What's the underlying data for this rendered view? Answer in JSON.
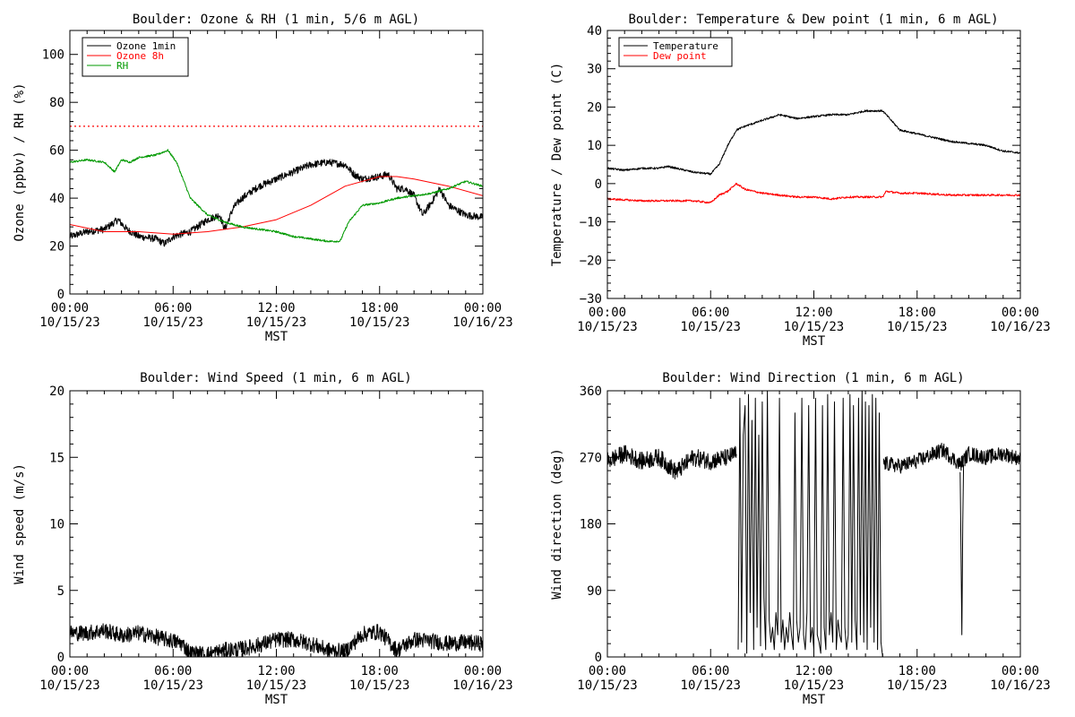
{
  "chart_data": [
    {
      "id": "p1",
      "type": "line",
      "title": "Boulder: Ozone & RH (1 min, 5/6 m AGL)",
      "ylabel": "Ozone (ppbv) / RH (%)",
      "xlabel": "MST",
      "xlim": [
        0,
        24
      ],
      "ylim": [
        0,
        110
      ],
      "xticks": [
        0,
        6,
        12,
        18,
        24
      ],
      "xticklabels": [
        [
          "00:00",
          "10/15/23"
        ],
        [
          "06:00",
          "10/15/23"
        ],
        [
          "12:00",
          "10/15/23"
        ],
        [
          "18:00",
          "10/15/23"
        ],
        [
          "00:00",
          "10/16/23"
        ]
      ],
      "yticks": [
        0,
        20,
        40,
        60,
        80,
        100
      ],
      "yticklabels": [
        "0",
        "20",
        "40",
        "60",
        "80",
        "100"
      ],
      "legend": "top-left",
      "grid": false,
      "hline": {
        "y": 70,
        "color": "#ff0000",
        "style": "dotted"
      },
      "series": [
        {
          "name": "Ozone 1min",
          "color": "#000000",
          "noise": 1.5,
          "x": [
            0,
            1,
            2,
            2.8,
            3.3,
            4,
            5,
            5.5,
            6,
            7,
            8,
            8.7,
            9,
            9.5,
            10,
            11,
            12,
            13,
            14,
            15,
            16,
            16.5,
            17,
            18,
            18.5,
            19,
            19.5,
            20,
            20.5,
            21,
            21.5,
            22,
            23,
            24
          ],
          "y": [
            24,
            26,
            27,
            31,
            27,
            24,
            23,
            21,
            24,
            26,
            31,
            33,
            27,
            36,
            40,
            45,
            48,
            51,
            54,
            55,
            54,
            50,
            48,
            49,
            50,
            44,
            44,
            41,
            33,
            38,
            44,
            37,
            33,
            32
          ]
        },
        {
          "name": "Ozone 8h",
          "color": "#ff0000",
          "noise": 0,
          "x": [
            0,
            2,
            4,
            6,
            8,
            10,
            12,
            14,
            16,
            18,
            19,
            20,
            22,
            24
          ],
          "y": [
            29,
            26,
            26,
            25,
            26,
            28,
            31,
            37,
            45,
            49,
            49,
            48,
            45,
            41
          ]
        },
        {
          "name": "RH",
          "color": "#009900",
          "noise": 0.4,
          "x": [
            0,
            1,
            2,
            2.6,
            3,
            3.5,
            4,
            5,
            5.7,
            6.2,
            7,
            8,
            9,
            10,
            11,
            12,
            13,
            14,
            15,
            15.7,
            16.2,
            17,
            18,
            19,
            20,
            21,
            22,
            23,
            24
          ],
          "y": [
            55,
            56,
            55,
            51,
            56,
            55,
            57,
            58,
            60,
            55,
            40,
            33,
            30,
            28,
            27,
            26,
            24,
            23,
            22,
            22,
            30,
            37,
            38,
            40,
            41,
            42,
            44,
            47,
            45
          ]
        }
      ]
    },
    {
      "id": "p2",
      "type": "line",
      "title": "Boulder: Temperature & Dew point (1 min, 6 m AGL)",
      "ylabel": "Temperature / Dew point (C)",
      "xlabel": "MST",
      "xlim": [
        0,
        24
      ],
      "ylim": [
        -30,
        40
      ],
      "xticks": [
        0,
        6,
        12,
        18,
        24
      ],
      "xticklabels": [
        [
          "00:00",
          "10/15/23"
        ],
        [
          "06:00",
          "10/15/23"
        ],
        [
          "12:00",
          "10/15/23"
        ],
        [
          "18:00",
          "10/15/23"
        ],
        [
          "00:00",
          "10/16/23"
        ]
      ],
      "yticks": [
        -30,
        -20,
        -10,
        0,
        10,
        20,
        30,
        40
      ],
      "yticklabels": [
        "−30",
        "−20",
        "−10",
        "0",
        "10",
        "20",
        "30",
        "40"
      ],
      "legend": "top-left",
      "grid": false,
      "series": [
        {
          "name": "Temperature",
          "color": "#000000",
          "noise": 0.25,
          "x": [
            0,
            1,
            2,
            3,
            3.5,
            4,
            5,
            6,
            6.5,
            7,
            7.5,
            8,
            9,
            10,
            11,
            12,
            13,
            14,
            15,
            16,
            16.4,
            17,
            18,
            19,
            20,
            21,
            22,
            23,
            24
          ],
          "y": [
            4,
            3.5,
            4,
            4,
            4.5,
            4,
            3,
            2.5,
            5,
            10,
            14,
            15,
            16.5,
            18,
            17,
            17.5,
            18,
            18,
            19,
            19,
            17,
            14,
            13,
            12,
            11,
            10.5,
            10,
            8.5,
            8
          ]
        },
        {
          "name": "Dew point",
          "color": "#ff0000",
          "noise": 0.25,
          "x": [
            0,
            2,
            4,
            5,
            6,
            6.5,
            7,
            7.5,
            8,
            9,
            10,
            11,
            12,
            13,
            14,
            15,
            16,
            16.2,
            17,
            18,
            20,
            22,
            24
          ],
          "y": [
            -4,
            -4.5,
            -4.5,
            -4.5,
            -5,
            -3,
            -2,
            0,
            -1.5,
            -2.5,
            -3,
            -3.5,
            -3.5,
            -4,
            -3.5,
            -3.5,
            -3.5,
            -2,
            -2.5,
            -2.5,
            -3,
            -3,
            -3
          ]
        }
      ]
    },
    {
      "id": "p3",
      "type": "line",
      "title": "Boulder: Wind Speed (1 min, 6 m AGL)",
      "ylabel": "Wind speed (m/s)",
      "xlabel": "MST",
      "xlim": [
        0,
        24
      ],
      "ylim": [
        0,
        20
      ],
      "xticks": [
        0,
        6,
        12,
        18,
        24
      ],
      "xticklabels": [
        [
          "00:00",
          "10/15/23"
        ],
        [
          "06:00",
          "10/15/23"
        ],
        [
          "12:00",
          "10/15/23"
        ],
        [
          "18:00",
          "10/15/23"
        ],
        [
          "00:00",
          "10/16/23"
        ]
      ],
      "yticks": [
        0,
        5,
        10,
        15,
        20
      ],
      "yticklabels": [
        "0",
        "5",
        "10",
        "15",
        "20"
      ],
      "grid": false,
      "series": [
        {
          "name": "",
          "color": "#000000",
          "noise": 0.6,
          "x": [
            0,
            1,
            2,
            3,
            4,
            5,
            6,
            6.5,
            7,
            8,
            9,
            10,
            11,
            12,
            13,
            14,
            15,
            16,
            17,
            18,
            19,
            20,
            21,
            22,
            23,
            24
          ],
          "y": [
            1.8,
            1.8,
            2.0,
            1.6,
            1.8,
            1.5,
            1.2,
            1.0,
            0.3,
            0.2,
            0.5,
            0.6,
            0.9,
            1.3,
            1.3,
            1.0,
            0.5,
            0.4,
            1.7,
            1.9,
            0.5,
            1.3,
            1.2,
            1.0,
            1.1,
            1.0
          ]
        }
      ]
    },
    {
      "id": "p4",
      "type": "line",
      "title": "Boulder: Wind Direction (1 min, 6 m AGL)",
      "ylabel": "Wind direction (deg)",
      "xlabel": "MST",
      "xlim": [
        0,
        24
      ],
      "ylim": [
        0,
        360
      ],
      "xticks": [
        0,
        6,
        12,
        18,
        24
      ],
      "xticklabels": [
        [
          "00:00",
          "10/15/23"
        ],
        [
          "06:00",
          "10/15/23"
        ],
        [
          "12:00",
          "10/15/23"
        ],
        [
          "18:00",
          "10/15/23"
        ],
        [
          "00:00",
          "10/16/23"
        ]
      ],
      "yticks": [
        0,
        90,
        180,
        270,
        360
      ],
      "yticklabels": [
        "0",
        "90",
        "180",
        "270",
        "360"
      ],
      "grid": false,
      "series": [
        {
          "name": "",
          "color": "#000000",
          "noise": 12,
          "x": [
            0,
            1,
            2,
            3,
            4,
            5,
            6,
            7,
            7.5
          ],
          "y": [
            265,
            275,
            265,
            270,
            250,
            270,
            265,
            270,
            275
          ]
        },
        {
          "name": "",
          "color": "#000000",
          "noise": 0,
          "x": [
            7.6,
            7.7,
            7.8,
            7.9,
            8.0,
            8.1,
            8.2,
            8.3,
            8.4,
            8.5,
            8.6,
            8.7,
            8.8,
            8.9,
            9.0,
            9.1,
            9.2,
            9.3,
            9.4,
            9.5,
            9.6,
            9.7,
            9.8,
            9.9,
            10.0,
            10.1,
            10.2,
            10.3,
            10.4,
            10.5,
            10.6,
            10.7,
            10.8,
            10.9,
            11.0,
            11.1,
            11.2,
            11.3,
            11.4,
            11.5,
            11.6,
            11.7,
            11.8,
            11.9,
            12.0,
            12.1,
            12.2,
            12.3,
            12.4,
            12.5,
            12.6,
            12.7,
            12.8,
            12.9,
            13.0,
            13.1,
            13.2,
            13.3,
            13.4,
            13.5,
            13.6,
            13.7,
            13.8,
            13.9,
            14.0,
            14.1,
            14.2,
            14.3,
            14.4,
            14.5,
            14.6,
            14.7,
            14.8,
            14.9,
            15.0,
            15.1,
            15.2,
            15.3,
            15.4,
            15.5,
            15.6,
            15.7,
            15.8,
            15.9,
            16.0
          ],
          "y": [
            10,
            350,
            20,
            300,
            340,
            5,
            355,
            60,
            320,
            10,
            350,
            40,
            300,
            15,
            345,
            80,
            10,
            360,
            50,
            20,
            40,
            10,
            60,
            30,
            350,
            20,
            50,
            10,
            40,
            20,
            60,
            30,
            10,
            330,
            50,
            20,
            40,
            350,
            30,
            10,
            60,
            340,
            20,
            40,
            10,
            350,
            30,
            20,
            5,
            340,
            40,
            10,
            355,
            30,
            60,
            20,
            345,
            10,
            50,
            30,
            20,
            350,
            40,
            10,
            30,
            355,
            20,
            340,
            50,
            10,
            350,
            30,
            360,
            20,
            345,
            10,
            340,
            40,
            355,
            20,
            350,
            10,
            330,
            20,
            0
          ]
        },
        {
          "name": "",
          "color": "#000000",
          "noise": 10,
          "x": [
            16.05,
            17,
            18,
            19,
            19.5,
            20,
            20.5,
            21,
            22,
            23,
            24
          ],
          "y": [
            262,
            258,
            265,
            275,
            280,
            270,
            260,
            275,
            270,
            275,
            268
          ]
        },
        {
          "name": "",
          "color": "#000000",
          "noise": 0,
          "x": [
            20.5,
            20.55,
            20.6,
            20.65,
            20.7
          ],
          "y": [
            250,
            150,
            30,
            180,
            260
          ]
        }
      ]
    }
  ]
}
